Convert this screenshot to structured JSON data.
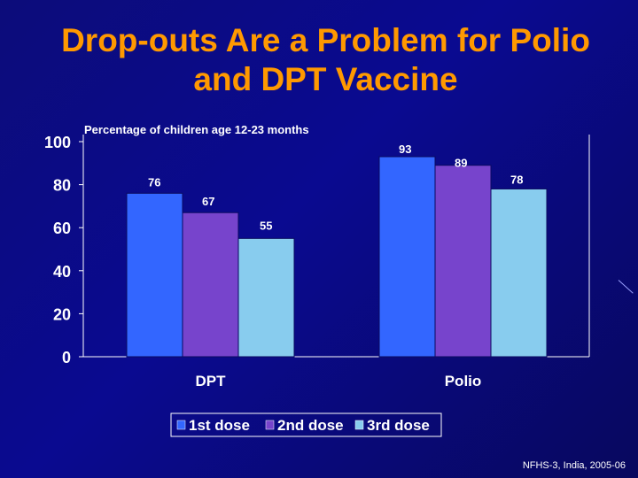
{
  "slide": {
    "title_line1": "Drop-outs Are a Problem for Polio",
    "title_line2": "and DPT Vaccine",
    "source": "NFHS-3, India, 2005-06"
  },
  "chart_data": {
    "type": "bar",
    "title": "Percentage of children age 12-23 months",
    "categories": [
      "DPT",
      "Polio"
    ],
    "series": [
      {
        "name": "1st dose",
        "values": [
          76,
          93
        ],
        "color": "#3366ff"
      },
      {
        "name": "2nd dose",
        "values": [
          67,
          89
        ],
        "color": "#7744cc"
      },
      {
        "name": "3rd dose",
        "values": [
          55,
          78
        ],
        "color": "#88ccee"
      }
    ],
    "ylim": [
      0,
      100
    ],
    "yticks": [
      0,
      20,
      40,
      60,
      80,
      100
    ],
    "xlabel": "",
    "ylabel": "",
    "legend": "bottom"
  }
}
